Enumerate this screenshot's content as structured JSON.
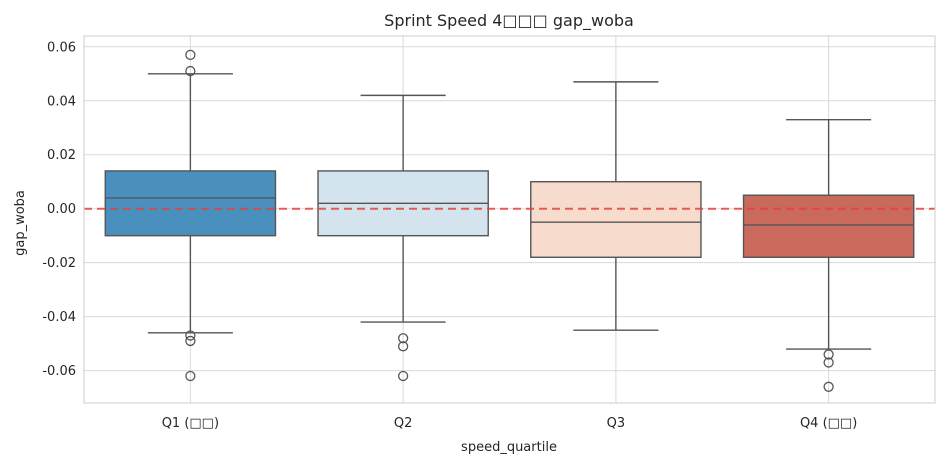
{
  "chart_data": {
    "type": "box",
    "title": "Sprint Speed 4□□□ gap_woba",
    "xlabel": "speed_quartile",
    "ylabel": "gap_woba",
    "ylim": [
      -0.072,
      0.064
    ],
    "yticks": [
      -0.06,
      -0.04,
      -0.02,
      0.0,
      0.02,
      0.04,
      0.06
    ],
    "ytick_labels": [
      "-0.06",
      "-0.04",
      "-0.02",
      "0.00",
      "0.02",
      "0.04",
      "0.06"
    ],
    "grid": true,
    "reference_line": {
      "y": 0.0,
      "style": "dashed",
      "color": "#e8413c"
    },
    "categories": [
      "Q1 (□□)",
      "Q2",
      "Q3",
      "Q4 (□□)"
    ],
    "boxes": [
      {
        "category": "Q1 (□□)",
        "whisker_low": -0.046,
        "q1": -0.01,
        "median": 0.004,
        "q3": 0.014,
        "whisker_high": 0.05,
        "outliers": [
          0.057,
          0.051,
          -0.047,
          -0.049,
          -0.062
        ],
        "color": "#4a90bf"
      },
      {
        "category": "Q2",
        "whisker_low": -0.042,
        "q1": -0.01,
        "median": 0.002,
        "q3": 0.014,
        "whisker_high": 0.042,
        "outliers": [
          -0.048,
          -0.051,
          -0.062
        ],
        "color": "#d3e4ef"
      },
      {
        "category": "Q3",
        "whisker_low": -0.045,
        "q1": -0.018,
        "median": -0.005,
        "q3": 0.01,
        "whisker_high": 0.047,
        "outliers": [],
        "color": "#f7dccd"
      },
      {
        "category": "Q4 (□□)",
        "whisker_low": -0.052,
        "q1": -0.018,
        "median": -0.006,
        "q3": 0.005,
        "whisker_high": 0.033,
        "outliers": [
          -0.054,
          -0.057,
          -0.066
        ],
        "color": "#c96a5c"
      }
    ]
  }
}
